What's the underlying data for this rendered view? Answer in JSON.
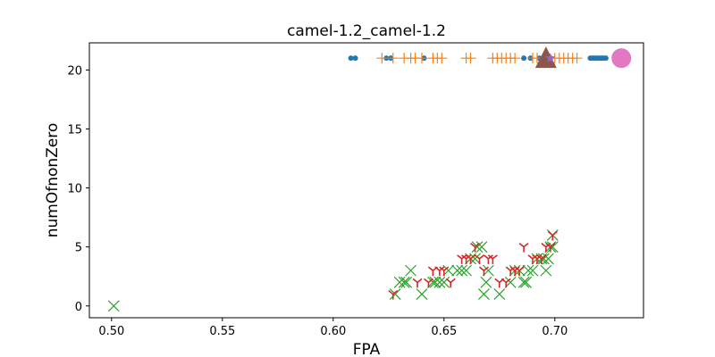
{
  "chart_data": {
    "type": "scatter",
    "title": "camel-1.2_camel-1.2",
    "xlabel": "FPA",
    "ylabel": "numOfnonZero",
    "xlim": [
      0.49,
      0.74
    ],
    "ylim": [
      -1,
      22.3
    ],
    "x_ticks": [
      "0.50",
      "0.55",
      "0.60",
      "0.65",
      "0.70"
    ],
    "y_ticks": [
      "0",
      "5",
      "10",
      "15",
      "20"
    ],
    "grid": false,
    "legend": "none",
    "series": [
      {
        "marker": "circle",
        "color": "#1f77b4",
        "points": [
          [
            0.608,
            21
          ],
          [
            0.61,
            21
          ],
          [
            0.624,
            21
          ],
          [
            0.626,
            21
          ],
          [
            0.641,
            21
          ],
          [
            0.686,
            21
          ],
          [
            0.689,
            21
          ],
          [
            0.693,
            21
          ],
          [
            0.696,
            21
          ],
          [
            0.698,
            21
          ],
          [
            0.716,
            21
          ],
          [
            0.717,
            21
          ],
          [
            0.718,
            21
          ],
          [
            0.719,
            21
          ],
          [
            0.72,
            21
          ],
          [
            0.721,
            21
          ],
          [
            0.722,
            21
          ],
          [
            0.723,
            21
          ]
        ]
      },
      {
        "marker": "plus",
        "color": "#ff7f0e",
        "points": [
          [
            0.622,
            21
          ],
          [
            0.627,
            21
          ],
          [
            0.632,
            21
          ],
          [
            0.635,
            21
          ],
          [
            0.637,
            21
          ],
          [
            0.64,
            21
          ],
          [
            0.645,
            21
          ],
          [
            0.647,
            21
          ],
          [
            0.649,
            21
          ],
          [
            0.66,
            21
          ],
          [
            0.662,
            21
          ],
          [
            0.672,
            21
          ],
          [
            0.674,
            21
          ],
          [
            0.676,
            21
          ],
          [
            0.678,
            21
          ],
          [
            0.68,
            21
          ],
          [
            0.682,
            21
          ],
          [
            0.69,
            21
          ],
          [
            0.692,
            21
          ],
          [
            0.7,
            21
          ],
          [
            0.702,
            21
          ],
          [
            0.704,
            21
          ],
          [
            0.706,
            21
          ],
          [
            0.708,
            21
          ],
          [
            0.71,
            21
          ]
        ]
      },
      {
        "marker": "x",
        "color": "#2ca02c",
        "points": [
          [
            0.501,
            0
          ],
          [
            0.628,
            1
          ],
          [
            0.63,
            2
          ],
          [
            0.632,
            2
          ],
          [
            0.633,
            2
          ],
          [
            0.635,
            3
          ],
          [
            0.64,
            1
          ],
          [
            0.645,
            2
          ],
          [
            0.646,
            2
          ],
          [
            0.648,
            2
          ],
          [
            0.65,
            2
          ],
          [
            0.652,
            3
          ],
          [
            0.656,
            3
          ],
          [
            0.658,
            3
          ],
          [
            0.66,
            3
          ],
          [
            0.662,
            4
          ],
          [
            0.664,
            4
          ],
          [
            0.665,
            5
          ],
          [
            0.667,
            5
          ],
          [
            0.668,
            1
          ],
          [
            0.669,
            2
          ],
          [
            0.67,
            3
          ],
          [
            0.675,
            1
          ],
          [
            0.68,
            2
          ],
          [
            0.682,
            3
          ],
          [
            0.684,
            3
          ],
          [
            0.686,
            2
          ],
          [
            0.687,
            2
          ],
          [
            0.688,
            3
          ],
          [
            0.69,
            3
          ],
          [
            0.692,
            4
          ],
          [
            0.694,
            4
          ],
          [
            0.695,
            4
          ],
          [
            0.696,
            3
          ],
          [
            0.697,
            4
          ],
          [
            0.698,
            5
          ],
          [
            0.699,
            5
          ],
          [
            0.699,
            6
          ]
        ]
      },
      {
        "marker": "tri_down",
        "color": "#d62728",
        "points": [
          [
            0.627,
            1
          ],
          [
            0.638,
            2
          ],
          [
            0.643,
            2
          ],
          [
            0.645,
            3
          ],
          [
            0.648,
            3
          ],
          [
            0.65,
            3
          ],
          [
            0.653,
            2
          ],
          [
            0.658,
            4
          ],
          [
            0.66,
            4
          ],
          [
            0.662,
            4
          ],
          [
            0.664,
            5
          ],
          [
            0.666,
            4
          ],
          [
            0.668,
            3
          ],
          [
            0.67,
            4
          ],
          [
            0.672,
            4
          ],
          [
            0.675,
            2
          ],
          [
            0.678,
            2
          ],
          [
            0.68,
            3
          ],
          [
            0.682,
            3
          ],
          [
            0.684,
            3
          ],
          [
            0.686,
            5
          ],
          [
            0.69,
            4
          ],
          [
            0.692,
            4
          ],
          [
            0.694,
            4
          ],
          [
            0.696,
            5
          ],
          [
            0.698,
            5
          ],
          [
            0.699,
            6
          ]
        ]
      },
      {
        "marker": "triangle_big",
        "color": "#8c564b",
        "points": [
          [
            0.696,
            21
          ]
        ]
      },
      {
        "marker": "star_small",
        "color": "#9467bd",
        "points": [
          [
            0.698,
            21
          ]
        ]
      },
      {
        "marker": "circle_big",
        "color": "#e377c2",
        "points": [
          [
            0.73,
            21
          ]
        ]
      }
    ]
  }
}
